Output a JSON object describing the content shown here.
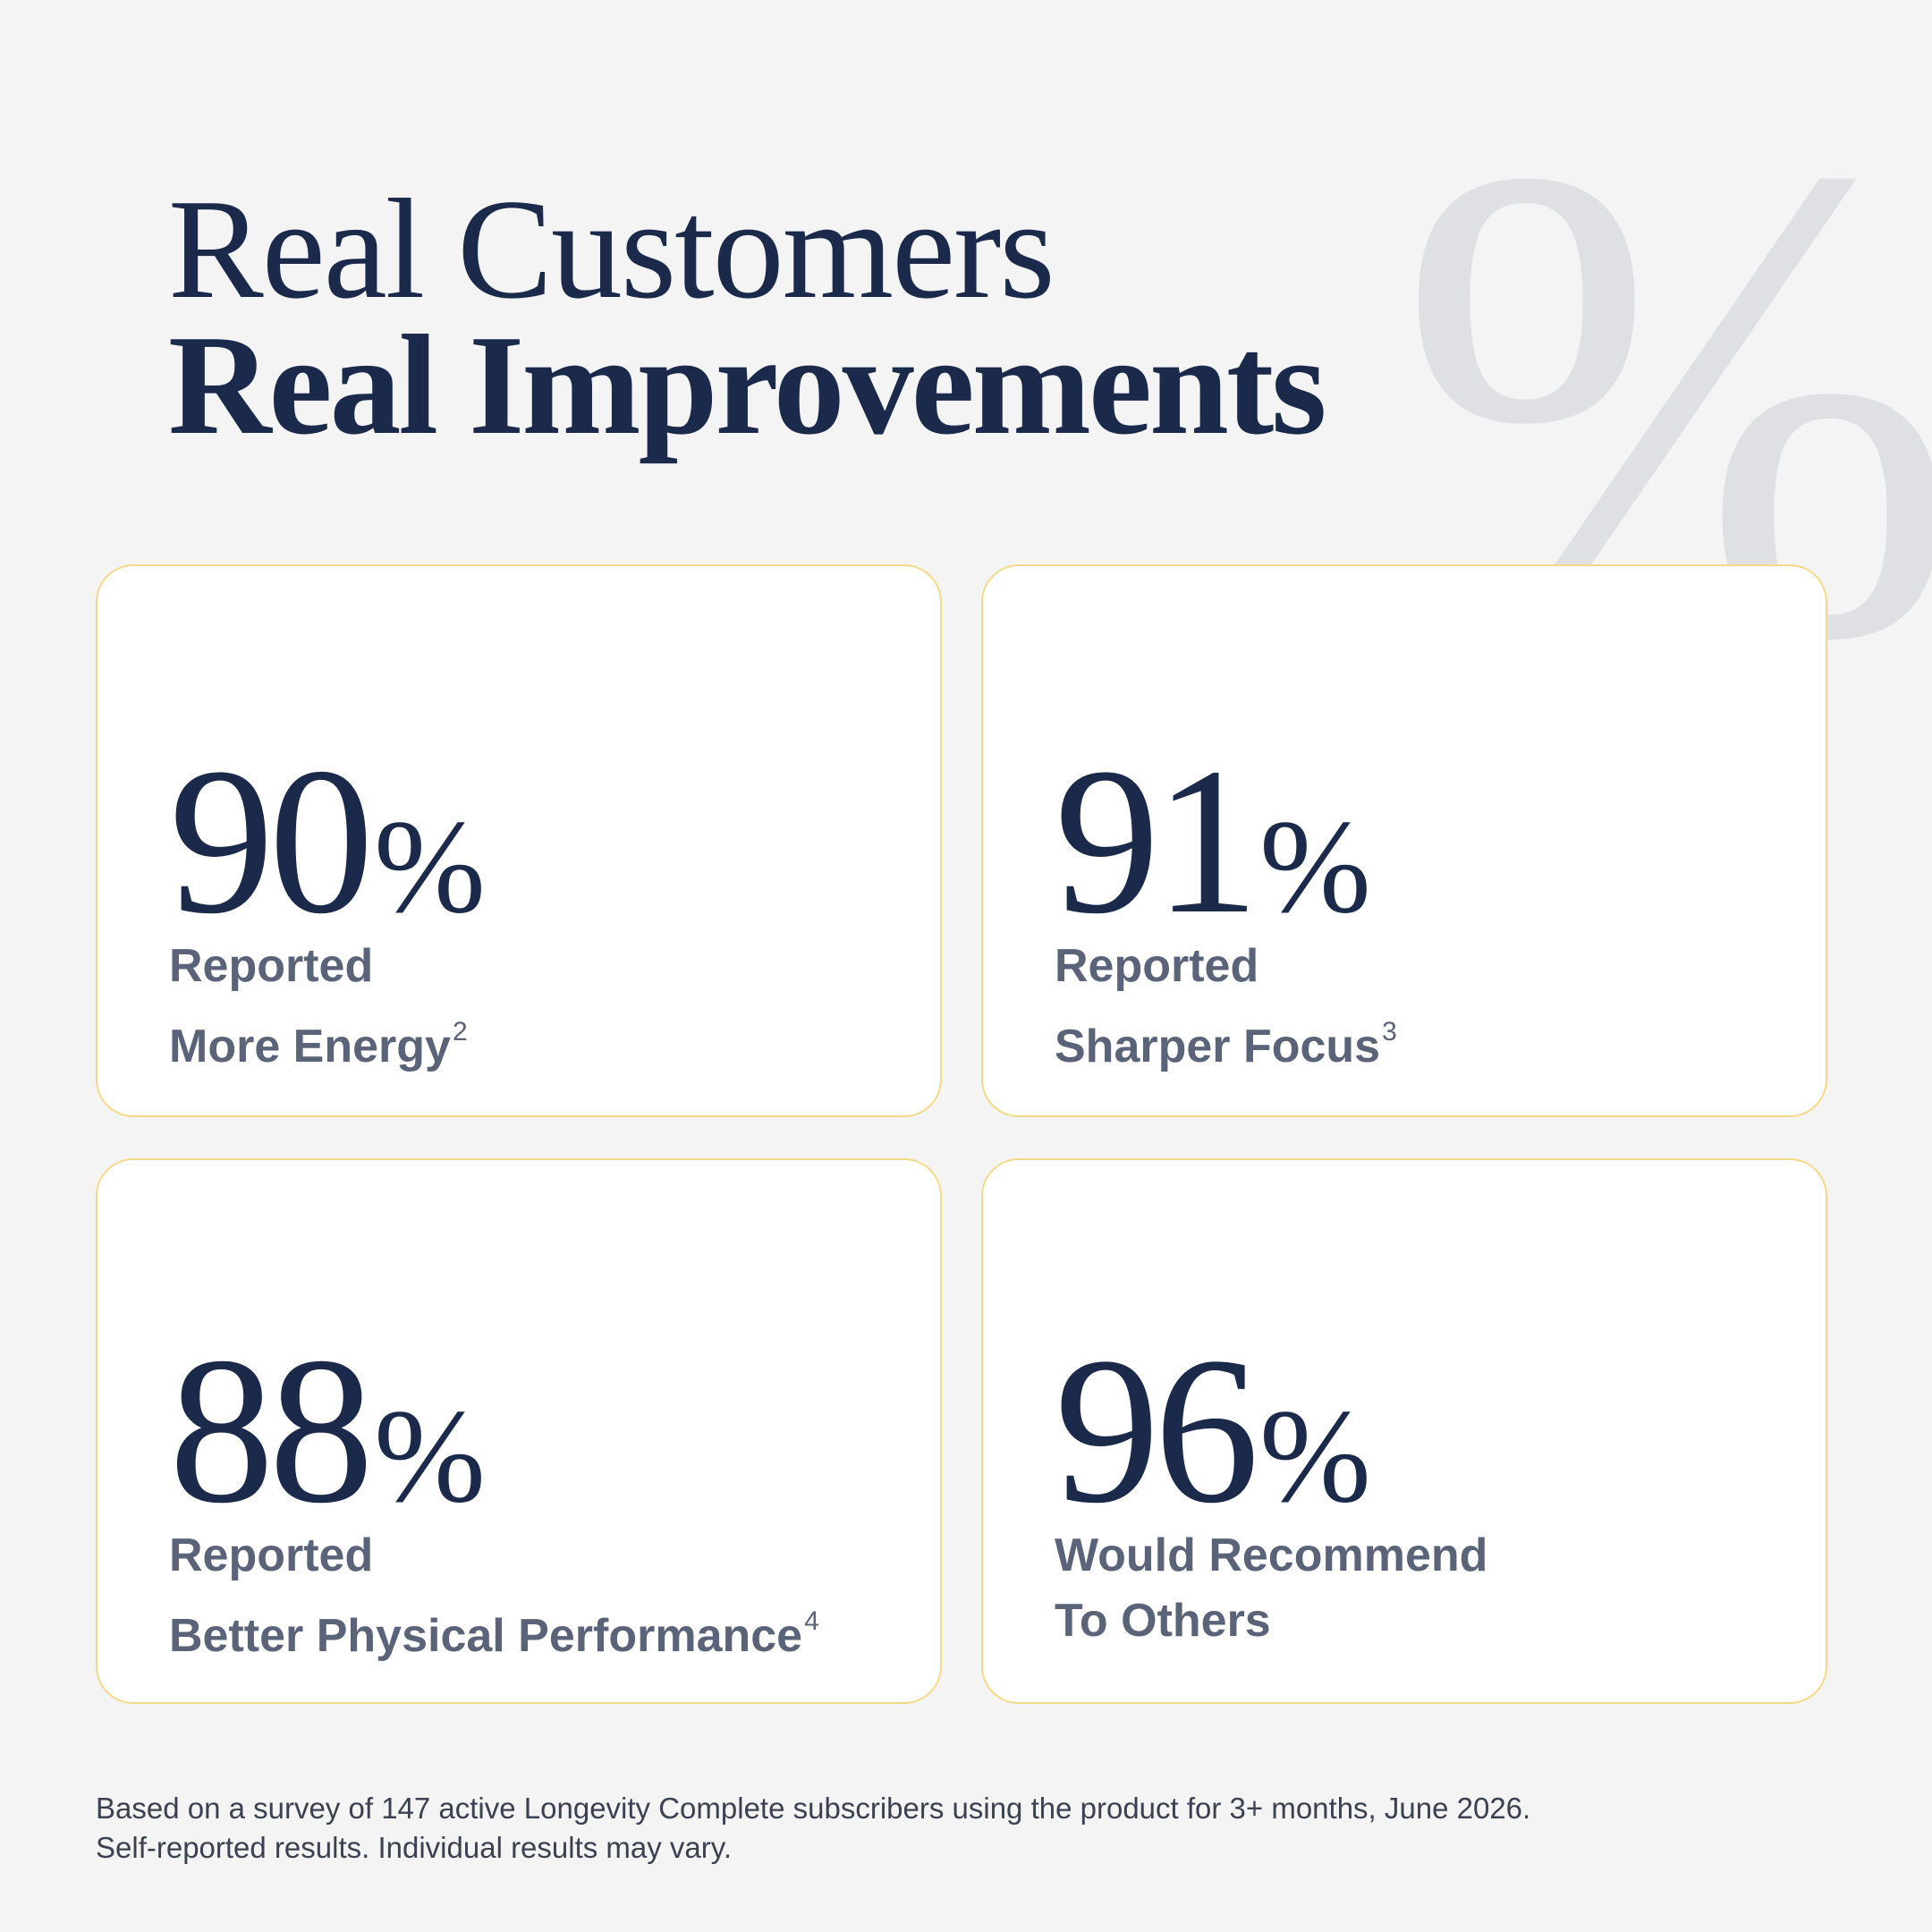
{
  "decoration": "%",
  "header": {
    "title_line1": "Real Customers",
    "title_line2": "Real Improvements"
  },
  "stats": [
    {
      "value": "90",
      "unit": "%",
      "line1": "Reported",
      "line2": "More Energy",
      "note": "2"
    },
    {
      "value": "91",
      "unit": "%",
      "line1": "Reported",
      "line2": "Sharper Focus",
      "note": "3"
    },
    {
      "value": "88",
      "unit": "%",
      "line1": "Reported",
      "line2": "Better Physical Performance",
      "note": "4"
    },
    {
      "value": "96",
      "unit": "%",
      "line1": "Would Recommend",
      "line2": "To Others"
    }
  ],
  "footnote": {
    "line1": "Based on a survey of 147 active Longevity Complete subscribers using the product for 3+ months, June 2026.",
    "line2": "Self-reported results. Individual results may vary."
  }
}
